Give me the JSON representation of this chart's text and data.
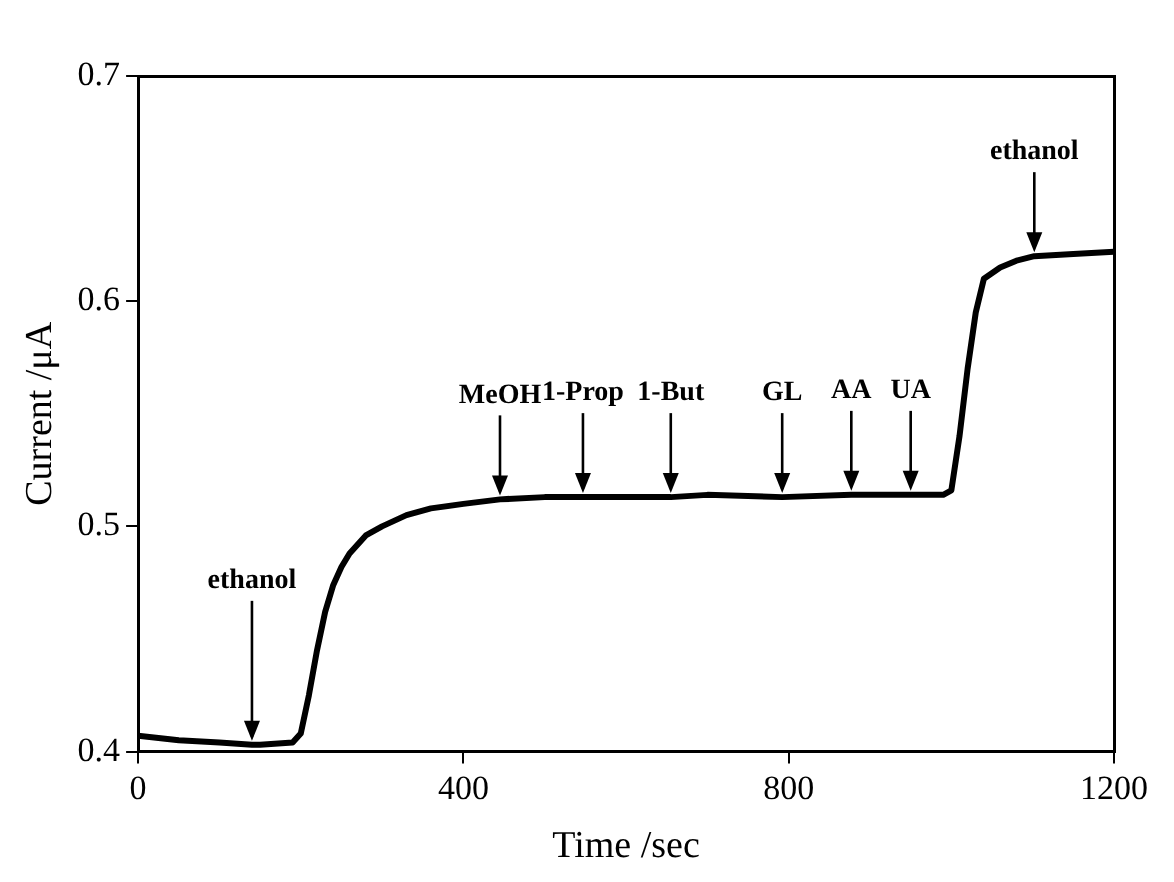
{
  "chart_data": {
    "type": "line",
    "xlabel": "Time /sec",
    "ylabel": "Current /μA",
    "x": [
      0,
      50,
      100,
      140,
      150,
      190,
      200,
      210,
      220,
      230,
      240,
      250,
      260,
      280,
      300,
      330,
      360,
      400,
      445,
      500,
      547,
      600,
      655,
      700,
      792,
      877,
      950,
      990,
      1000,
      1010,
      1020,
      1030,
      1040,
      1060,
      1080,
      1102,
      1150,
      1200
    ],
    "series": [
      {
        "color": "#000000",
        "values": [
          0.407,
          0.405,
          0.404,
          0.403,
          0.403,
          0.404,
          0.408,
          0.425,
          0.445,
          0.462,
          0.474,
          0.482,
          0.488,
          0.496,
          0.5,
          0.505,
          0.508,
          0.51,
          0.512,
          0.513,
          0.513,
          0.513,
          0.513,
          0.514,
          0.513,
          0.514,
          0.514,
          0.514,
          0.516,
          0.54,
          0.57,
          0.595,
          0.61,
          0.615,
          0.618,
          0.62,
          0.621,
          0.622
        ]
      }
    ],
    "xlim": [
      0,
      1200
    ],
    "xticks": [
      0,
      400,
      800,
      1200
    ],
    "ylim": [
      0.4,
      0.7
    ],
    "yticks": [
      0.4,
      0.5,
      0.6,
      0.7
    ],
    "grid": false,
    "legend": false,
    "marker": "none",
    "line_style": "solid",
    "annotations": [
      {
        "text": "ethanol",
        "x": 140,
        "y": 0.403
      },
      {
        "text": "MeOH",
        "x": 445,
        "y": 0.512
      },
      {
        "text": "1-Prop",
        "x": 547,
        "y": 0.513
      },
      {
        "text": "1-But",
        "x": 655,
        "y": 0.513
      },
      {
        "text": "GL",
        "x": 792,
        "y": 0.513
      },
      {
        "text": "AA",
        "x": 877,
        "y": 0.514
      },
      {
        "text": "UA",
        "x": 950,
        "y": 0.514
      },
      {
        "text": "ethanol",
        "x": 1102,
        "y": 0.62
      }
    ]
  }
}
